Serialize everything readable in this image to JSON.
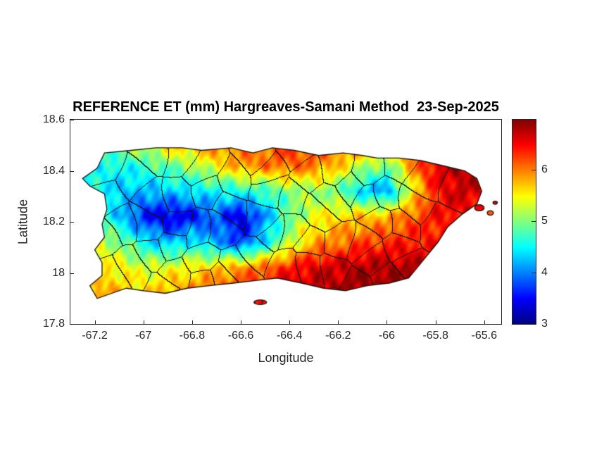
{
  "chart_data": {
    "type": "heatmap",
    "title": "REFERENCE ET (mm) Hargreaves-Samani Method  23-Sep-2025",
    "variable": "Reference evapotranspiration",
    "units": "mm",
    "method": "Hargreaves-Samani",
    "date": "23-Sep-2025",
    "region": "Puerto Rico with municipality boundaries overlaid",
    "xlabel": "Longitude",
    "ylabel": "Latitude",
    "xlim": [
      -67.3,
      -65.53
    ],
    "ylim": [
      17.8,
      18.6
    ],
    "x_ticks": {
      "values": [
        -67.2,
        -67.0,
        -66.8,
        -66.6,
        -66.4,
        -66.2,
        -66.0,
        -65.8,
        -65.6
      ],
      "labels": [
        "-67.2",
        "-67",
        "-66.8",
        "-66.6",
        "-66.4",
        "-66.2",
        "-66",
        "-65.8",
        "-65.6"
      ]
    },
    "y_ticks": {
      "values": [
        18.6,
        18.4,
        18.2,
        18.0,
        17.8
      ],
      "labels": [
        "18.6",
        "18.4",
        "18.2",
        "18",
        "17.8"
      ]
    },
    "colorbar": {
      "colormap": "jet",
      "vmin": 3,
      "vmax": 6.97,
      "tick_values": [
        3,
        4,
        5,
        6
      ],
      "tick_labels": [
        "3",
        "4",
        "5",
        "6"
      ],
      "position": "right"
    },
    "grid": {
      "lons": [
        -67.2,
        -67.1,
        -67.0,
        -66.9,
        -66.8,
        -66.7,
        -66.6,
        -66.5,
        -66.4,
        -66.3,
        -66.2,
        -66.1,
        -66.0,
        -65.9,
        -65.8,
        -65.7,
        -65.6
      ],
      "lats": [
        18.52,
        18.42,
        18.32,
        18.22,
        18.12,
        18.02,
        17.92
      ],
      "values_mm": [
        [
          5.0,
          5.2,
          5.4,
          5.8,
          6.0,
          6.1,
          6.0,
          6.1,
          6.3,
          6.3,
          6.2,
          6.2,
          6.1,
          6.3,
          6.5,
          6.6,
          6.5
        ],
        [
          4.6,
          4.5,
          4.7,
          4.9,
          5.1,
          5.5,
          5.9,
          6.0,
          6.1,
          6.0,
          5.7,
          5.2,
          4.9,
          5.9,
          6.6,
          6.8,
          6.6
        ],
        [
          4.5,
          4.3,
          4.2,
          4.3,
          4.4,
          4.5,
          4.6,
          4.7,
          5.0,
          5.1,
          4.9,
          4.3,
          4.1,
          5.4,
          6.4,
          6.7,
          6.6
        ],
        [
          4.9,
          4.3,
          3.6,
          3.3,
          3.5,
          3.9,
          3.3,
          4.1,
          4.9,
          5.4,
          5.6,
          5.7,
          5.8,
          6.1,
          6.4,
          6.5,
          6.4
        ],
        [
          5.3,
          5.0,
          4.5,
          4.2,
          4.5,
          4.1,
          3.7,
          4.4,
          5.2,
          5.8,
          6.0,
          6.2,
          6.3,
          6.4,
          6.4,
          6.3,
          6.2
        ],
        [
          5.6,
          5.5,
          5.3,
          5.4,
          5.5,
          5.7,
          5.9,
          6.1,
          6.4,
          6.6,
          6.7,
          6.8,
          6.8,
          6.8,
          6.6,
          6.4,
          6.3
        ],
        [
          5.9,
          5.7,
          5.6,
          5.8,
          6.0,
          6.2,
          6.3,
          6.5,
          6.7,
          6.8,
          6.8,
          6.9,
          6.9,
          6.8,
          6.6,
          6.4,
          6.3
        ]
      ]
    },
    "coastline": {
      "mainland": [
        [
          -67.16,
          18.47
        ],
        [
          -67.05,
          18.48
        ],
        [
          -66.95,
          18.49
        ],
        [
          -66.84,
          18.49
        ],
        [
          -66.76,
          18.48
        ],
        [
          -66.64,
          18.49
        ],
        [
          -66.55,
          18.47
        ],
        [
          -66.47,
          18.49
        ],
        [
          -66.38,
          18.48
        ],
        [
          -66.28,
          18.46
        ],
        [
          -66.18,
          18.47
        ],
        [
          -66.1,
          18.46
        ],
        [
          -66.04,
          18.45
        ],
        [
          -65.95,
          18.45
        ],
        [
          -65.86,
          18.44
        ],
        [
          -65.77,
          18.42
        ],
        [
          -65.68,
          18.4
        ],
        [
          -65.63,
          18.37
        ],
        [
          -65.61,
          18.32
        ],
        [
          -65.63,
          18.27
        ],
        [
          -65.69,
          18.23
        ],
        [
          -65.75,
          18.18
        ],
        [
          -65.79,
          18.12
        ],
        [
          -65.85,
          18.05
        ],
        [
          -65.91,
          17.98
        ],
        [
          -65.99,
          17.96
        ],
        [
          -66.08,
          17.95
        ],
        [
          -66.17,
          17.93
        ],
        [
          -66.26,
          17.94
        ],
        [
          -66.35,
          17.96
        ],
        [
          -66.45,
          17.98
        ],
        [
          -66.54,
          17.97
        ],
        [
          -66.63,
          17.96
        ],
        [
          -66.73,
          17.95
        ],
        [
          -66.82,
          17.94
        ],
        [
          -66.91,
          17.92
        ],
        [
          -67.0,
          17.93
        ],
        [
          -67.07,
          17.94
        ],
        [
          -67.13,
          17.92
        ],
        [
          -67.19,
          17.9
        ],
        [
          -67.22,
          17.95
        ],
        [
          -67.17,
          17.99
        ],
        [
          -67.17,
          18.04
        ],
        [
          -67.2,
          18.09
        ],
        [
          -67.16,
          18.14
        ],
        [
          -67.17,
          18.19
        ],
        [
          -67.15,
          18.25
        ],
        [
          -67.16,
          18.31
        ],
        [
          -67.22,
          18.34
        ],
        [
          -67.25,
          18.37
        ],
        [
          -67.19,
          18.41
        ],
        [
          -67.16,
          18.47
        ]
      ],
      "islets": [
        {
          "cx": -66.52,
          "cy": 17.885,
          "rx": 0.026,
          "ry": 0.009
        },
        {
          "cx": -65.62,
          "cy": 18.255,
          "rx": 0.02,
          "ry": 0.012
        },
        {
          "cx": -65.575,
          "cy": 18.235,
          "rx": 0.013,
          "ry": 0.009
        },
        {
          "cx": -65.555,
          "cy": 18.275,
          "rx": 0.009,
          "ry": 0.006
        }
      ]
    }
  }
}
